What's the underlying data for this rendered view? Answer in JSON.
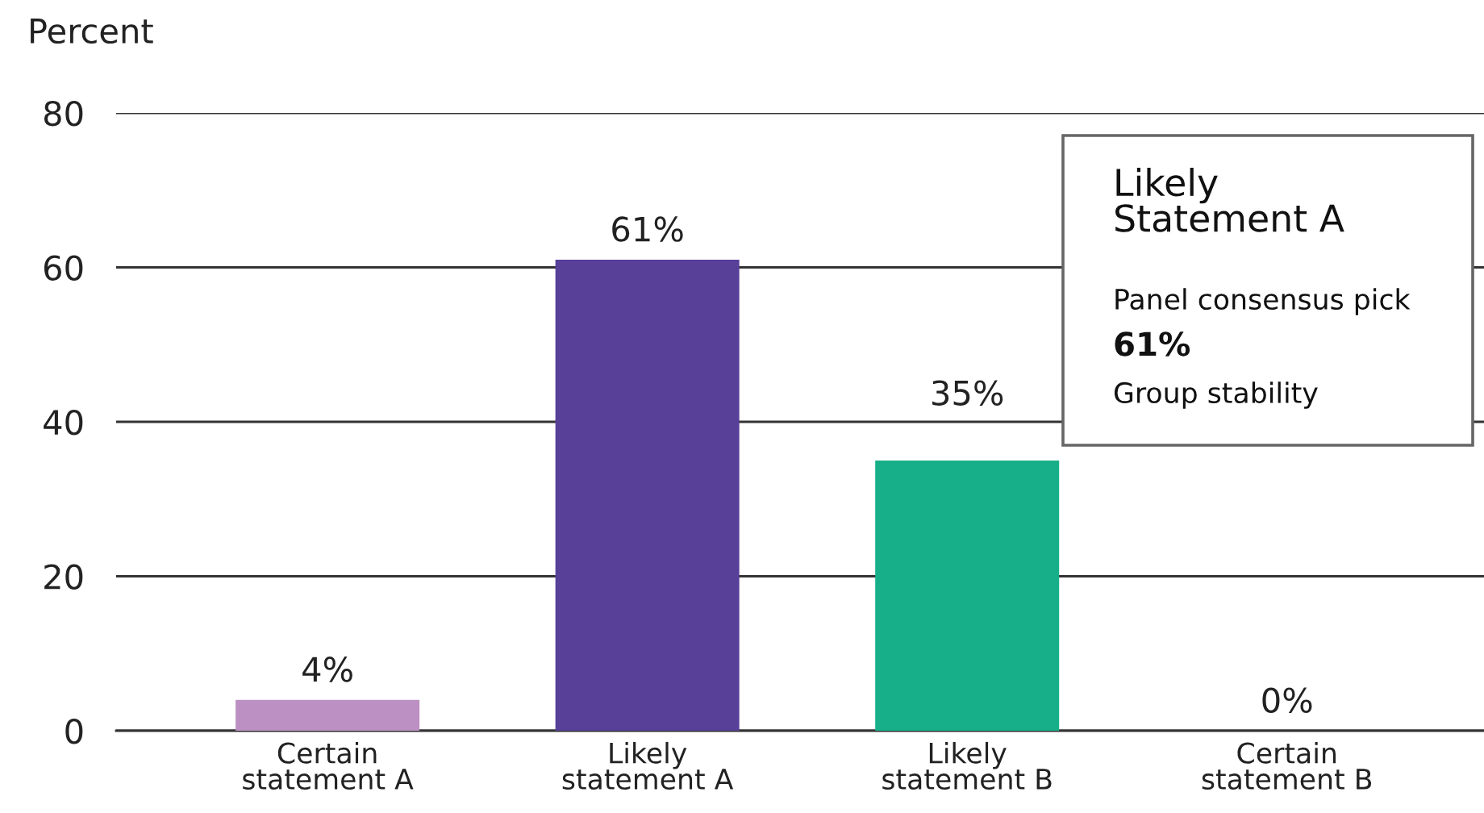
{
  "chart_data": {
    "type": "bar",
    "ylabel": "Percent",
    "categories": [
      "Certain\nstatement A",
      "Likely\nstatement A",
      "Likely\nstatement B",
      "Certain\nstatement B"
    ],
    "values": [
      4,
      61,
      35,
      0
    ],
    "value_labels": [
      "4%",
      "61%",
      "35%",
      "0%"
    ],
    "colors": [
      "#bc90c2",
      "#583f98",
      "#17af8a",
      "#8fd3bc"
    ],
    "ylim": [
      0,
      80
    ],
    "yticks": [
      0,
      20,
      40,
      60,
      80
    ],
    "grid": "y",
    "annotations": [
      "Likely\nStatement A",
      "Panel consensus pick",
      "61%",
      "Group stability"
    ]
  }
}
